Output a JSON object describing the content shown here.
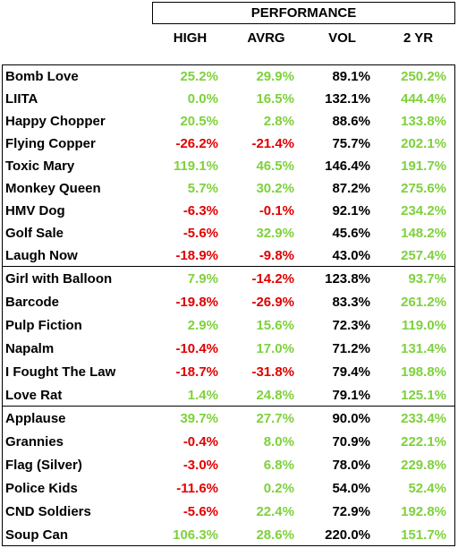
{
  "header": {
    "title": "PERFORMANCE",
    "columns": [
      "HIGH",
      "AVRG",
      "VOL",
      "2 YR"
    ]
  },
  "groups": [
    {
      "rows": [
        [
          "Bomb Love",
          "25.2%",
          "29.9%",
          "89.1%",
          "250.2%"
        ],
        [
          "LIITA",
          "0.0%",
          "16.5%",
          "132.1%",
          "444.4%"
        ],
        [
          "Happy Chopper",
          "20.5%",
          "2.8%",
          "88.6%",
          "133.8%"
        ],
        [
          "Flying Copper",
          "-26.2%",
          "-21.4%",
          "75.7%",
          "202.1%"
        ],
        [
          "Toxic Mary",
          "119.1%",
          "46.5%",
          "146.4%",
          "191.7%"
        ],
        [
          "Monkey Queen",
          "5.7%",
          "30.2%",
          "87.2%",
          "275.6%"
        ],
        [
          "HMV Dog",
          "-6.3%",
          "-0.1%",
          "92.1%",
          "234.2%"
        ],
        [
          "Golf Sale",
          "-5.6%",
          "32.9%",
          "45.6%",
          "148.2%"
        ],
        [
          "Laugh Now",
          "-18.9%",
          "-9.8%",
          "43.0%",
          "257.4%"
        ]
      ]
    },
    {
      "rows": [
        [
          "Girl with Balloon",
          "7.9%",
          "-14.2%",
          "123.8%",
          "93.7%"
        ],
        [
          "Barcode",
          "-19.8%",
          "-26.9%",
          "83.3%",
          "261.2%"
        ],
        [
          "Pulp Fiction",
          "2.9%",
          "15.6%",
          "72.3%",
          "119.0%"
        ],
        [
          "Napalm",
          "-10.4%",
          "17.0%",
          "71.2%",
          "131.4%"
        ],
        [
          "I Fought The Law",
          "-18.7%",
          "-31.8%",
          "79.4%",
          "198.8%"
        ],
        [
          "Love Rat",
          "1.4%",
          "24.8%",
          "79.1%",
          "125.1%"
        ]
      ]
    },
    {
      "rows": [
        [
          "Applause",
          "39.7%",
          "27.7%",
          "90.0%",
          "233.4%"
        ],
        [
          "Grannies",
          "-0.4%",
          "8.0%",
          "70.9%",
          "222.1%"
        ],
        [
          "Flag (Silver)",
          "-3.0%",
          "6.8%",
          "78.0%",
          "229.8%"
        ],
        [
          "Police Kids",
          "-11.6%",
          "0.2%",
          "54.0%",
          "52.4%"
        ],
        [
          "CND Soldiers",
          "-5.6%",
          "22.4%",
          "72.9%",
          "192.8%"
        ],
        [
          "Soup Can",
          "106.3%",
          "28.6%",
          "220.0%",
          "151.7%"
        ]
      ]
    }
  ]
}
